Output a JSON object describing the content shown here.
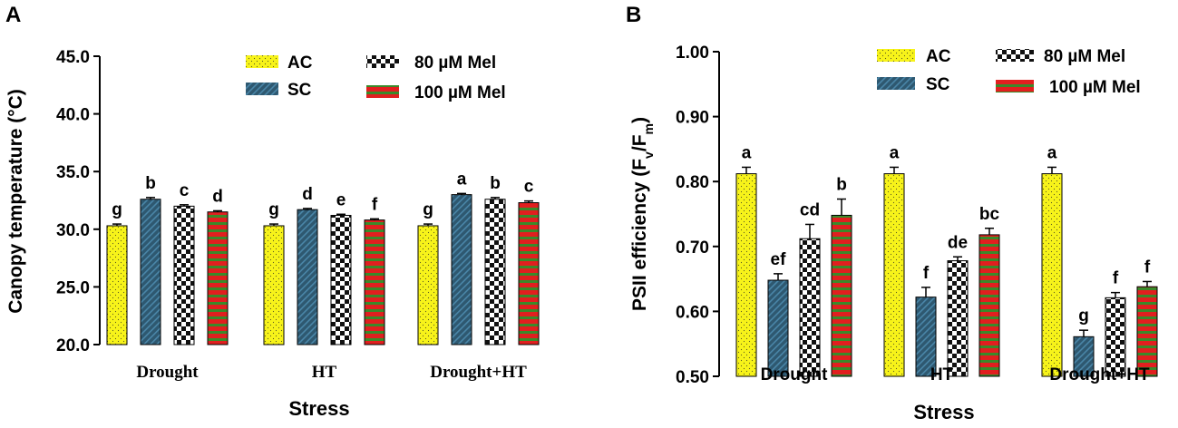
{
  "panel_labels": [
    "A",
    "B"
  ],
  "colors": {
    "ac_fill": "#f7f31a",
    "sc_fill": "#2e5870",
    "sc_stripe": "#4a86a8",
    "checker_dark": "#111111",
    "checker_light": "#ffffff",
    "mel100_red": "#e11f1f",
    "mel100_green": "#3a8a2a"
  },
  "legend": [
    {
      "label": "AC",
      "pattern": "dots-yellow"
    },
    {
      "label": "SC",
      "pattern": "stripes-blue"
    },
    {
      "label": "80 µM Mel",
      "pattern": "checker"
    },
    {
      "label": "100 µM Mel",
      "pattern": "red-green-stripes"
    }
  ],
  "chart_data": [
    {
      "type": "bar",
      "panel": "A",
      "title": "",
      "xlabel": "Stress",
      "ylabel": "Canopy temperature (°C)",
      "ylim": [
        20,
        45
      ],
      "yticks": [
        "20.0",
        "25.0",
        "30.0",
        "35.0",
        "40.0",
        "45.0"
      ],
      "ytick_values": [
        20,
        25,
        30,
        35,
        40,
        45
      ],
      "categories": [
        "Drought",
        "HT",
        "Drought+HT"
      ],
      "series": [
        {
          "name": "AC",
          "values": [
            30.3,
            30.3,
            30.3
          ],
          "errors": [
            0.15,
            0.15,
            0.15
          ],
          "letters": [
            "g",
            "g",
            "g"
          ]
        },
        {
          "name": "SC",
          "values": [
            32.6,
            31.7,
            33.0
          ],
          "errors": [
            0.15,
            0.1,
            0.1
          ],
          "letters": [
            "b",
            "d",
            "a"
          ]
        },
        {
          "name": "80 µM Mel",
          "values": [
            32.0,
            31.2,
            32.6
          ],
          "errors": [
            0.12,
            0.1,
            0.15
          ],
          "letters": [
            "c",
            "e",
            "b"
          ]
        },
        {
          "name": "100 µM Mel",
          "values": [
            31.5,
            30.8,
            32.3
          ],
          "errors": [
            0.1,
            0.1,
            0.15
          ],
          "letters": [
            "d",
            "f",
            "c"
          ]
        }
      ]
    },
    {
      "type": "bar",
      "panel": "B",
      "title": "",
      "xlabel": "Stress",
      "ylabel": "PSII efficiency (F",
      "ylabel_sub1": "v",
      "ylabel_mid": "/F",
      "ylabel_sub2": "m",
      "ylabel_end": ")",
      "ylim": [
        0.5,
        1.0
      ],
      "yticks": [
        "0.50",
        "0.60",
        "0.70",
        "0.80",
        "0.90",
        "1.00"
      ],
      "ytick_values": [
        0.5,
        0.6,
        0.7,
        0.8,
        0.9,
        1.0
      ],
      "categories": [
        "Drought",
        "HT",
        "Drought+HT"
      ],
      "series": [
        {
          "name": "AC",
          "values": [
            0.812,
            0.812,
            0.812
          ],
          "errors": [
            0.01,
            0.01,
            0.01
          ],
          "letters": [
            "a",
            "a",
            "a"
          ]
        },
        {
          "name": "SC",
          "values": [
            0.648,
            0.622,
            0.561
          ],
          "errors": [
            0.01,
            0.015,
            0.01
          ],
          "letters": [
            "ef",
            "f",
            "g"
          ]
        },
        {
          "name": "80 µM Mel",
          "values": [
            0.712,
            0.678,
            0.621
          ],
          "errors": [
            0.022,
            0.006,
            0.008
          ],
          "letters": [
            "cd",
            "de",
            "f"
          ]
        },
        {
          "name": "100 µM Mel",
          "values": [
            0.748,
            0.718,
            0.638
          ],
          "errors": [
            0.025,
            0.01,
            0.008
          ],
          "letters": [
            "b",
            "bc",
            "f"
          ]
        }
      ]
    }
  ]
}
